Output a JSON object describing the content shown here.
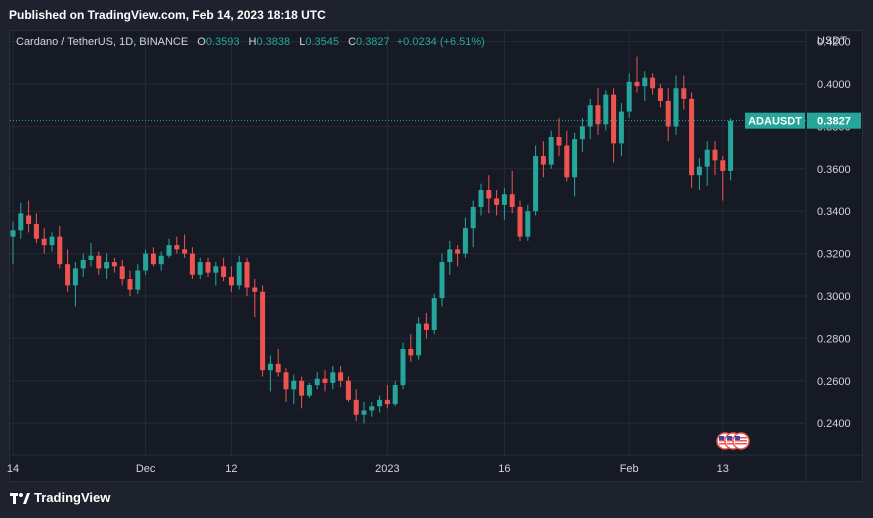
{
  "header": {
    "published": "Published on TradingView.com, Feb 14, 2023 18:18 UTC"
  },
  "legend": {
    "symbol": "Cardano / TetherUS, 1D, BINANCE",
    "o_label": "O",
    "o_value": "0.3593",
    "h_label": "H",
    "h_value": "0.3838",
    "l_label": "L",
    "l_value": "0.3545",
    "c_label": "C",
    "c_value": "0.3827",
    "change": "+0.0234 (+6.51%)"
  },
  "axis": {
    "currency": "USDT"
  },
  "price_tag": {
    "label": "ADAUSDT",
    "value": "0.3827"
  },
  "footer": {
    "brand": "TradingView"
  },
  "colors": {
    "up": "#26a69a",
    "down": "#ef5350",
    "background": "#161a25",
    "grid": "#252a35",
    "tag": "#26a69a"
  },
  "chart_data": {
    "type": "candlestick",
    "ylim": [
      0.225,
      0.425
    ],
    "y_ticks": [
      "0.2400",
      "0.2600",
      "0.2800",
      "0.3000",
      "0.3200",
      "0.3400",
      "0.3600",
      "0.3800",
      "0.4000",
      "0.4200"
    ],
    "x_ticks": [
      {
        "label": "14",
        "index": 0
      },
      {
        "label": "Dec",
        "index": 17
      },
      {
        "label": "12",
        "index": 28
      },
      {
        "label": "2023",
        "index": 48
      },
      {
        "label": "16",
        "index": 63
      },
      {
        "label": "Feb",
        "index": 79
      },
      {
        "label": "13",
        "index": 91
      }
    ],
    "last_close": 0.3827,
    "candles": [
      [
        0.328,
        0.335,
        0.315,
        0.331
      ],
      [
        0.331,
        0.344,
        0.327,
        0.339
      ],
      [
        0.338,
        0.345,
        0.33,
        0.334
      ],
      [
        0.334,
        0.339,
        0.325,
        0.327
      ],
      [
        0.327,
        0.332,
        0.32,
        0.324
      ],
      [
        0.324,
        0.33,
        0.321,
        0.328
      ],
      [
        0.328,
        0.333,
        0.313,
        0.315
      ],
      [
        0.315,
        0.322,
        0.302,
        0.305
      ],
      [
        0.305,
        0.316,
        0.295,
        0.313
      ],
      [
        0.313,
        0.32,
        0.309,
        0.317
      ],
      [
        0.317,
        0.325,
        0.314,
        0.319
      ],
      [
        0.319,
        0.321,
        0.31,
        0.313
      ],
      [
        0.313,
        0.32,
        0.308,
        0.316
      ],
      [
        0.316,
        0.318,
        0.311,
        0.314
      ],
      [
        0.314,
        0.317,
        0.305,
        0.308
      ],
      [
        0.308,
        0.312,
        0.3,
        0.303
      ],
      [
        0.303,
        0.315,
        0.301,
        0.312
      ],
      [
        0.312,
        0.322,
        0.31,
        0.32
      ],
      [
        0.32,
        0.323,
        0.314,
        0.315
      ],
      [
        0.315,
        0.321,
        0.312,
        0.319
      ],
      [
        0.319,
        0.327,
        0.318,
        0.324
      ],
      [
        0.324,
        0.328,
        0.32,
        0.322
      ],
      [
        0.322,
        0.329,
        0.318,
        0.32
      ],
      [
        0.32,
        0.323,
        0.308,
        0.31
      ],
      [
        0.31,
        0.318,
        0.308,
        0.316
      ],
      [
        0.316,
        0.318,
        0.309,
        0.311
      ],
      [
        0.311,
        0.316,
        0.305,
        0.314
      ],
      [
        0.314,
        0.318,
        0.307,
        0.309
      ],
      [
        0.309,
        0.314,
        0.302,
        0.305
      ],
      [
        0.305,
        0.319,
        0.303,
        0.316
      ],
      [
        0.316,
        0.318,
        0.3,
        0.304
      ],
      [
        0.304,
        0.308,
        0.29,
        0.302
      ],
      [
        0.302,
        0.305,
        0.262,
        0.265
      ],
      [
        0.265,
        0.272,
        0.255,
        0.268
      ],
      [
        0.268,
        0.275,
        0.262,
        0.264
      ],
      [
        0.264,
        0.266,
        0.25,
        0.256
      ],
      [
        0.256,
        0.263,
        0.249,
        0.26
      ],
      [
        0.26,
        0.262,
        0.247,
        0.253
      ],
      [
        0.253,
        0.259,
        0.252,
        0.258
      ],
      [
        0.258,
        0.264,
        0.256,
        0.261
      ],
      [
        0.261,
        0.265,
        0.255,
        0.259
      ],
      [
        0.259,
        0.267,
        0.256,
        0.264
      ],
      [
        0.264,
        0.267,
        0.257,
        0.26
      ],
      [
        0.26,
        0.262,
        0.25,
        0.251
      ],
      [
        0.251,
        0.256,
        0.241,
        0.244
      ],
      [
        0.244,
        0.25,
        0.24,
        0.246
      ],
      [
        0.246,
        0.25,
        0.243,
        0.248
      ],
      [
        0.248,
        0.253,
        0.245,
        0.251
      ],
      [
        0.251,
        0.258,
        0.247,
        0.249
      ],
      [
        0.249,
        0.26,
        0.248,
        0.258
      ],
      [
        0.258,
        0.278,
        0.256,
        0.275
      ],
      [
        0.275,
        0.282,
        0.269,
        0.272
      ],
      [
        0.272,
        0.29,
        0.27,
        0.287
      ],
      [
        0.287,
        0.292,
        0.28,
        0.284
      ],
      [
        0.284,
        0.301,
        0.282,
        0.299
      ],
      [
        0.299,
        0.32,
        0.295,
        0.316
      ],
      [
        0.316,
        0.326,
        0.31,
        0.322
      ],
      [
        0.322,
        0.324,
        0.314,
        0.32
      ],
      [
        0.32,
        0.337,
        0.318,
        0.332
      ],
      [
        0.332,
        0.345,
        0.323,
        0.342
      ],
      [
        0.342,
        0.353,
        0.338,
        0.35
      ],
      [
        0.35,
        0.357,
        0.339,
        0.346
      ],
      [
        0.346,
        0.35,
        0.338,
        0.343
      ],
      [
        0.343,
        0.351,
        0.336,
        0.348
      ],
      [
        0.348,
        0.359,
        0.339,
        0.342
      ],
      [
        0.342,
        0.345,
        0.326,
        0.328
      ],
      [
        0.328,
        0.343,
        0.326,
        0.34
      ],
      [
        0.34,
        0.371,
        0.338,
        0.366
      ],
      [
        0.366,
        0.373,
        0.356,
        0.362
      ],
      [
        0.362,
        0.378,
        0.36,
        0.375
      ],
      [
        0.375,
        0.384,
        0.366,
        0.371
      ],
      [
        0.371,
        0.378,
        0.354,
        0.356
      ],
      [
        0.356,
        0.377,
        0.347,
        0.374
      ],
      [
        0.374,
        0.384,
        0.368,
        0.38
      ],
      [
        0.38,
        0.393,
        0.374,
        0.39
      ],
      [
        0.39,
        0.398,
        0.376,
        0.381
      ],
      [
        0.381,
        0.397,
        0.378,
        0.395
      ],
      [
        0.395,
        0.398,
        0.363,
        0.372
      ],
      [
        0.372,
        0.391,
        0.366,
        0.387
      ],
      [
        0.387,
        0.405,
        0.384,
        0.401
      ],
      [
        0.401,
        0.413,
        0.396,
        0.399
      ],
      [
        0.399,
        0.406,
        0.392,
        0.403
      ],
      [
        0.403,
        0.405,
        0.395,
        0.398
      ],
      [
        0.398,
        0.4,
        0.389,
        0.392
      ],
      [
        0.392,
        0.398,
        0.373,
        0.38
      ],
      [
        0.38,
        0.404,
        0.376,
        0.398
      ],
      [
        0.398,
        0.404,
        0.388,
        0.393
      ],
      [
        0.393,
        0.396,
        0.351,
        0.357
      ],
      [
        0.357,
        0.365,
        0.35,
        0.361
      ],
      [
        0.361,
        0.373,
        0.352,
        0.369
      ],
      [
        0.369,
        0.373,
        0.357,
        0.364
      ],
      [
        0.364,
        0.366,
        0.345,
        0.359
      ],
      [
        0.359,
        0.3838,
        0.3545,
        0.3827
      ]
    ]
  }
}
